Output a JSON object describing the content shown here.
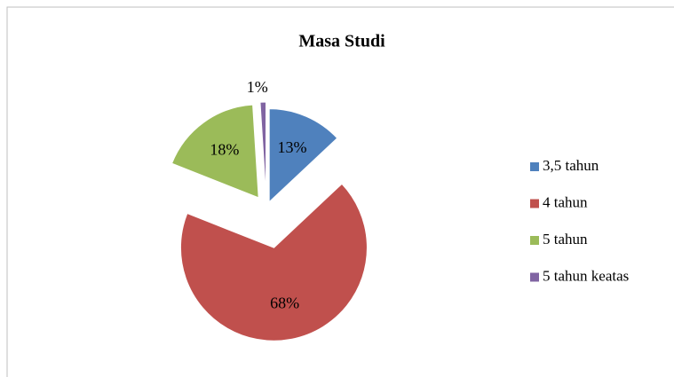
{
  "chart_data": {
    "type": "pie",
    "title": "Masa Studi",
    "categories": [
      "3,5 tahun",
      "4 tahun",
      "5 tahun",
      "5 tahun keatas"
    ],
    "values": [
      13,
      68,
      18,
      1
    ],
    "value_labels": [
      "13%",
      "68%",
      "18%",
      "1%"
    ],
    "colors": [
      "#4f81bd",
      "#c0504d",
      "#9bbb59",
      "#8064a2"
    ],
    "legend": "right"
  }
}
